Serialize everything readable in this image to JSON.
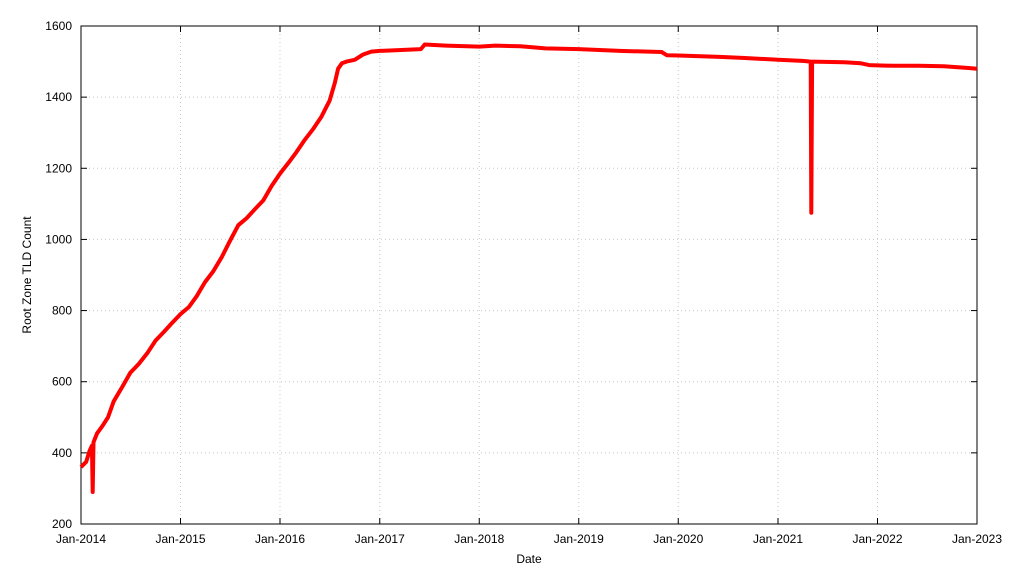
{
  "chart_data": {
    "type": "line",
    "title": "",
    "xlabel": "Date",
    "ylabel": "Root Zone TLD Count",
    "xlim": [
      "2014-01-01",
      "2023-01-01"
    ],
    "ylim": [
      200,
      1600
    ],
    "y_ticks": [
      200,
      400,
      600,
      800,
      1000,
      1200,
      1400,
      1600
    ],
    "x_ticks": [
      {
        "date": "2014-01-01",
        "label": "Jan-2014"
      },
      {
        "date": "2015-01-01",
        "label": "Jan-2015"
      },
      {
        "date": "2016-01-01",
        "label": "Jan-2016"
      },
      {
        "date": "2017-01-01",
        "label": "Jan-2017"
      },
      {
        "date": "2018-01-01",
        "label": "Jan-2018"
      },
      {
        "date": "2019-01-01",
        "label": "Jan-2019"
      },
      {
        "date": "2020-01-01",
        "label": "Jan-2020"
      },
      {
        "date": "2021-01-01",
        "label": "Jan-2021"
      },
      {
        "date": "2022-01-01",
        "label": "Jan-2022"
      },
      {
        "date": "2023-01-01",
        "label": "Jan-2023"
      }
    ],
    "grid": true,
    "line_color": "#ff0000",
    "series": [
      {
        "name": "",
        "points": [
          [
            "2014-01-01",
            360
          ],
          [
            "2014-01-20",
            375
          ],
          [
            "2014-02-01",
            405
          ],
          [
            "2014-02-10",
            420
          ],
          [
            "2014-02-13",
            290
          ],
          [
            "2014-02-16",
            430
          ],
          [
            "2014-03-01",
            455
          ],
          [
            "2014-03-20",
            475
          ],
          [
            "2014-04-10",
            500
          ],
          [
            "2014-05-01",
            545
          ],
          [
            "2014-06-01",
            585
          ],
          [
            "2014-07-01",
            625
          ],
          [
            "2014-08-01",
            650
          ],
          [
            "2014-09-01",
            680
          ],
          [
            "2014-10-01",
            715
          ],
          [
            "2014-11-01",
            740
          ],
          [
            "2014-12-01",
            765
          ],
          [
            "2015-01-01",
            790
          ],
          [
            "2015-02-01",
            810
          ],
          [
            "2015-03-01",
            840
          ],
          [
            "2015-04-01",
            880
          ],
          [
            "2015-05-01",
            910
          ],
          [
            "2015-06-01",
            950
          ],
          [
            "2015-07-01",
            995
          ],
          [
            "2015-08-01",
            1040
          ],
          [
            "2015-09-01",
            1060
          ],
          [
            "2015-10-01",
            1085
          ],
          [
            "2015-11-01",
            1110
          ],
          [
            "2015-12-01",
            1150
          ],
          [
            "2016-01-01",
            1185
          ],
          [
            "2016-02-01",
            1215
          ],
          [
            "2016-03-01",
            1245
          ],
          [
            "2016-04-01",
            1280
          ],
          [
            "2016-05-01",
            1310
          ],
          [
            "2016-06-01",
            1345
          ],
          [
            "2016-07-01",
            1390
          ],
          [
            "2016-07-20",
            1440
          ],
          [
            "2016-08-01",
            1480
          ],
          [
            "2016-08-15",
            1495
          ],
          [
            "2016-09-01",
            1500
          ],
          [
            "2016-10-01",
            1505
          ],
          [
            "2016-11-01",
            1520
          ],
          [
            "2016-12-01",
            1528
          ],
          [
            "2017-01-01",
            1530
          ],
          [
            "2017-03-01",
            1532
          ],
          [
            "2017-06-01",
            1535
          ],
          [
            "2017-06-15",
            1548
          ],
          [
            "2017-09-01",
            1545
          ],
          [
            "2018-01-01",
            1542
          ],
          [
            "2018-03-01",
            1545
          ],
          [
            "2018-06-01",
            1543
          ],
          [
            "2018-09-01",
            1537
          ],
          [
            "2019-01-01",
            1535
          ],
          [
            "2019-06-01",
            1530
          ],
          [
            "2019-11-01",
            1527
          ],
          [
            "2019-11-20",
            1518
          ],
          [
            "2020-01-01",
            1517
          ],
          [
            "2020-06-01",
            1513
          ],
          [
            "2020-09-01",
            1510
          ],
          [
            "2021-01-01",
            1505
          ],
          [
            "2021-04-01",
            1502
          ],
          [
            "2021-05-01",
            1500
          ],
          [
            "2021-05-03",
            1075
          ],
          [
            "2021-05-06",
            1500
          ],
          [
            "2021-09-01",
            1498
          ],
          [
            "2021-11-01",
            1495
          ],
          [
            "2021-12-01",
            1490
          ],
          [
            "2022-03-01",
            1488
          ],
          [
            "2022-06-01",
            1488
          ],
          [
            "2022-09-01",
            1487
          ],
          [
            "2022-12-01",
            1482
          ],
          [
            "2023-01-01",
            1480
          ]
        ]
      }
    ]
  }
}
